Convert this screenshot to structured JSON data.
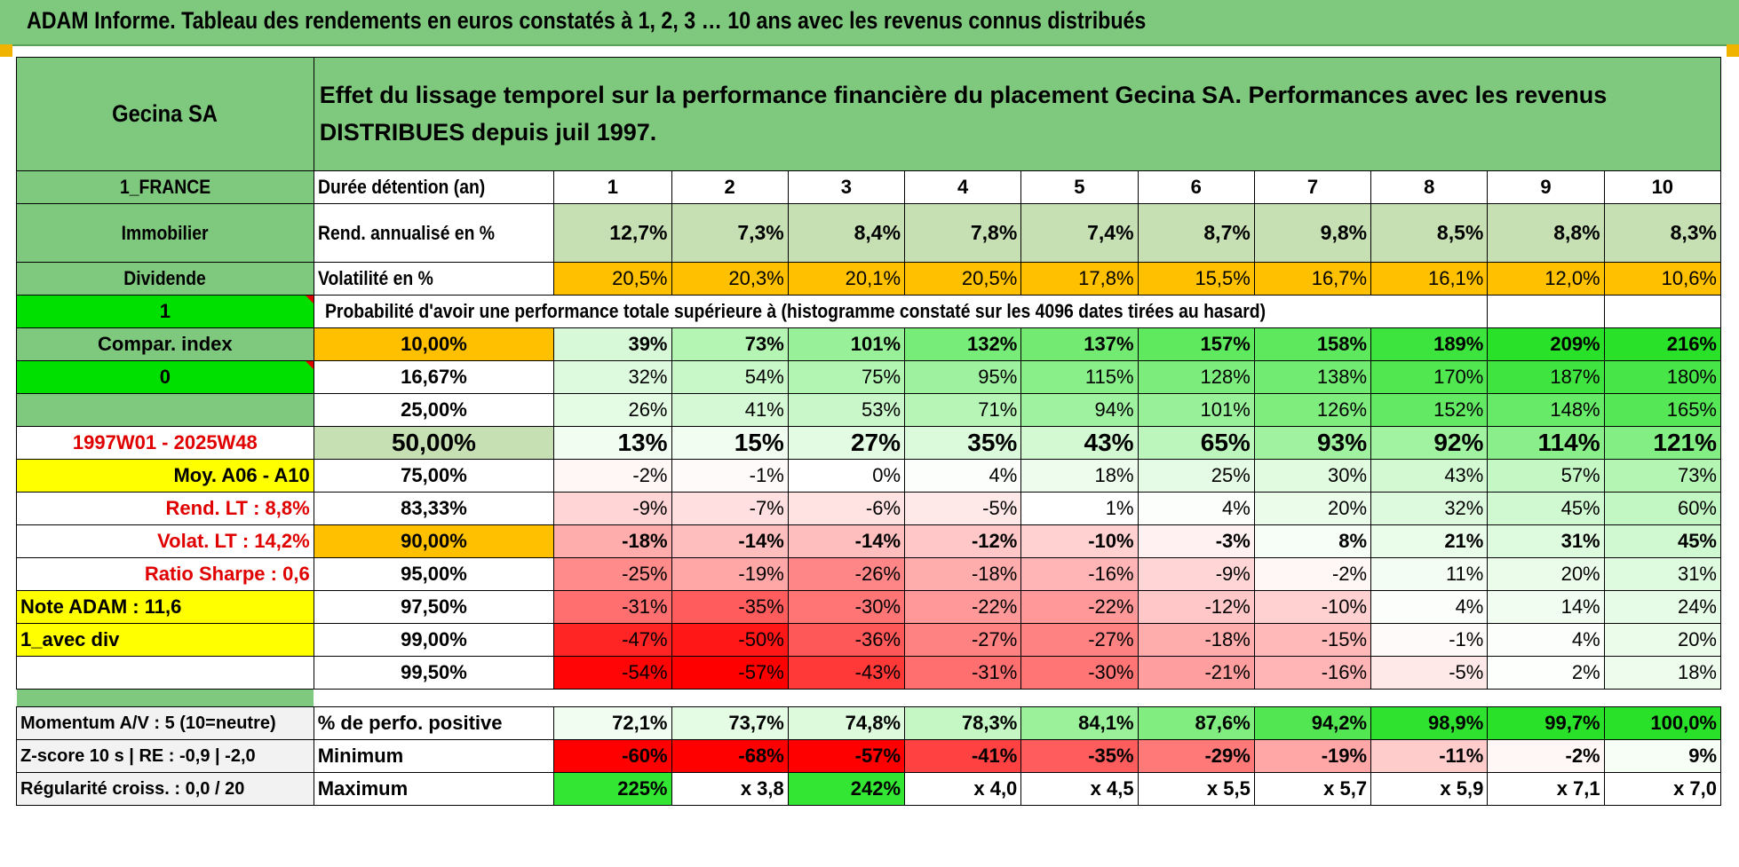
{
  "header": {
    "title": "ADAM Informe. Tableau des rendements en euros constatés à 1, 2, 3 … 10 ans avec les revenus connus distribués"
  },
  "left": {
    "name": "Gecina SA",
    "country": "1_FRANCE",
    "sector": "Immobilier",
    "dividend": "Dividende",
    "flag1": "1",
    "compar": "Compar. index",
    "flag0": "0",
    "period": "1997W01 - 2025W48",
    "moy": "Moy. A06 - A10",
    "rend_lt": "Rend. LT :    8,8%",
    "volat_lt": "Volat. LT :    14,2%",
    "sharpe": "Ratio Sharpe :     0,6",
    "note": "Note ADAM : 11,6",
    "avec_div": "1_avec div",
    "momentum": "Momentum A/V : 5 (10=neutre)",
    "zscore": "Z-score 10 s | RE : -0,9 | -2,0",
    "regularite": "Régularité croiss. : 0,0 / 20"
  },
  "main": {
    "title": "Effet du lissage temporel sur la performance financière du placement Gecina SA. Performances avec les revenus DISTRIBUES depuis juil 1997.",
    "duree_label": "Durée détention (an)",
    "years": [
      "1",
      "2",
      "3",
      "4",
      "5",
      "6",
      "7",
      "8",
      "9",
      "10"
    ],
    "rend_label": "Rend. annualisé en %",
    "rend": [
      "12,7%",
      "7,3%",
      "8,4%",
      "7,8%",
      "7,4%",
      "8,7%",
      "9,8%",
      "8,5%",
      "8,8%",
      "8,3%"
    ],
    "vol_label": "Volatilité en %",
    "vol": [
      "20,5%",
      "20,3%",
      "20,1%",
      "20,5%",
      "17,8%",
      "15,5%",
      "16,7%",
      "16,1%",
      "12,0%",
      "10,6%"
    ],
    "prob_title": "Probabilité d'avoir une performance totale supérieure à (histogramme constaté sur les 4096 dates tirées au hasard)",
    "prob_rows": [
      {
        "pct": "10,00%",
        "vals": [
          "39%",
          "73%",
          "101%",
          "132%",
          "137%",
          "157%",
          "158%",
          "189%",
          "209%",
          "216%"
        ]
      },
      {
        "pct": "16,67%",
        "vals": [
          "32%",
          "54%",
          "75%",
          "95%",
          "115%",
          "128%",
          "138%",
          "170%",
          "187%",
          "180%"
        ]
      },
      {
        "pct": "25,00%",
        "vals": [
          "26%",
          "41%",
          "53%",
          "71%",
          "94%",
          "101%",
          "126%",
          "152%",
          "148%",
          "165%"
        ]
      },
      {
        "pct": "50,00%",
        "vals": [
          "13%",
          "15%",
          "27%",
          "35%",
          "43%",
          "65%",
          "93%",
          "92%",
          "114%",
          "121%"
        ]
      },
      {
        "pct": "75,00%",
        "vals": [
          "-2%",
          "-1%",
          "0%",
          "4%",
          "18%",
          "25%",
          "30%",
          "43%",
          "57%",
          "73%"
        ]
      },
      {
        "pct": "83,33%",
        "vals": [
          "-9%",
          "-7%",
          "-6%",
          "-5%",
          "1%",
          "4%",
          "20%",
          "32%",
          "45%",
          "60%"
        ]
      },
      {
        "pct": "90,00%",
        "vals": [
          "-18%",
          "-14%",
          "-14%",
          "-12%",
          "-10%",
          "-3%",
          "8%",
          "21%",
          "31%",
          "45%"
        ]
      },
      {
        "pct": "95,00%",
        "vals": [
          "-25%",
          "-19%",
          "-26%",
          "-18%",
          "-16%",
          "-9%",
          "-2%",
          "11%",
          "20%",
          "31%"
        ]
      },
      {
        "pct": "97,50%",
        "vals": [
          "-31%",
          "-35%",
          "-30%",
          "-22%",
          "-22%",
          "-12%",
          "-10%",
          "4%",
          "14%",
          "24%"
        ]
      },
      {
        "pct": "99,00%",
        "vals": [
          "-47%",
          "-50%",
          "-36%",
          "-27%",
          "-27%",
          "-18%",
          "-15%",
          "-1%",
          "4%",
          "20%"
        ]
      },
      {
        "pct": "99,50%",
        "vals": [
          "-54%",
          "-57%",
          "-43%",
          "-31%",
          "-30%",
          "-21%",
          "-16%",
          "-5%",
          "2%",
          "18%"
        ]
      }
    ],
    "pos_label": "% de perfo. positive",
    "pos": [
      "72,1%",
      "73,7%",
      "74,8%",
      "78,3%",
      "84,1%",
      "87,6%",
      "94,2%",
      "98,9%",
      "99,7%",
      "100,0%"
    ],
    "min_label": "Minimum",
    "min": [
      "-60%",
      "-68%",
      "-57%",
      "-41%",
      "-35%",
      "-29%",
      "-19%",
      "-11%",
      "-2%",
      "9%"
    ],
    "max_label": "Maximum",
    "max": [
      "225%",
      "x 3,8",
      "242%",
      "x 4,0",
      "x 4,5",
      "x 5,5",
      "x 5,7",
      "x 5,9",
      "x 7,1",
      "x 7,0"
    ]
  },
  "colors": {
    "label_green": "#7fc97f",
    "bright_green": "#00e000",
    "yellow": "#ffff00",
    "orange": "#ffc000",
    "negative_red": "#ff0000",
    "positive_green": "#33e633"
  }
}
